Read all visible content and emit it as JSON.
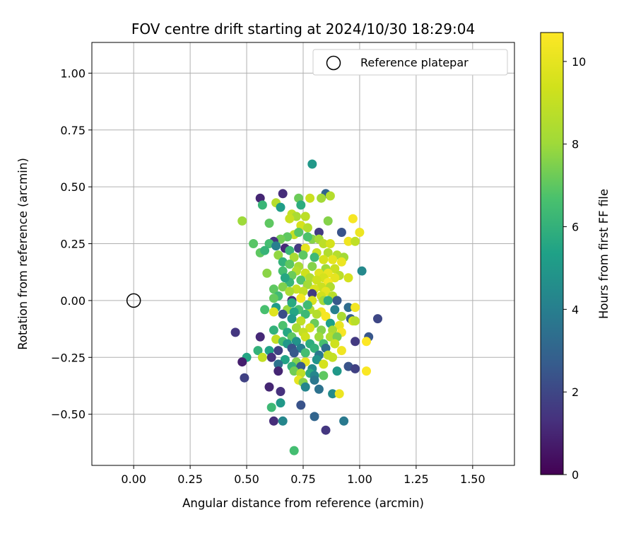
{
  "chart_data": {
    "type": "scatter",
    "title": "FOV centre drift starting at 2024/10/30 18:29:04",
    "xlabel": "Angular distance from reference (arcmin)",
    "ylabel": "Rotation from reference (arcmin)",
    "xlim": [
      -0.185,
      1.685
    ],
    "ylim": [
      -0.725,
      1.135
    ],
    "xticks": [
      0.0,
      0.25,
      0.5,
      0.75,
      1.0,
      1.25,
      1.5
    ],
    "xtick_labels": [
      "0.00",
      "0.25",
      "0.50",
      "0.75",
      "1.00",
      "1.25",
      "1.50"
    ],
    "yticks": [
      -0.5,
      -0.25,
      0.0,
      0.25,
      0.5,
      0.75,
      1.0
    ],
    "ytick_labels": [
      "−0.50",
      "−0.25",
      "0.00",
      "0.25",
      "0.50",
      "0.75",
      "1.00"
    ],
    "grid": true,
    "legend": {
      "placement": "top-right",
      "entries": [
        "Reference platepar"
      ]
    },
    "reference_point": {
      "x": 0.0,
      "y": 0.0,
      "label": "Reference platepar"
    },
    "colorbar": {
      "label": "Hours from first FF file",
      "colormap": "viridis",
      "range": [
        0,
        10.7
      ],
      "ticks": [
        0,
        2,
        4,
        6,
        8,
        10
      ],
      "tick_labels": [
        "0",
        "2",
        "4",
        "6",
        "8",
        "10"
      ]
    },
    "points": [
      [
        0.79,
        0.6,
        5.0
      ],
      [
        0.85,
        0.47,
        3.0
      ],
      [
        0.87,
        0.46,
        8.6
      ],
      [
        0.66,
        0.47,
        1.2
      ],
      [
        0.56,
        0.45,
        1.0
      ],
      [
        0.73,
        0.45,
        7.2
      ],
      [
        0.78,
        0.45,
        9.2
      ],
      [
        0.83,
        0.45,
        8.1
      ],
      [
        0.63,
        0.43,
        8.6
      ],
      [
        0.57,
        0.42,
        6.2
      ],
      [
        0.74,
        0.42,
        5.8
      ],
      [
        0.65,
        0.41,
        5.2
      ],
      [
        0.7,
        0.38,
        9.0
      ],
      [
        0.72,
        0.37,
        8.3
      ],
      [
        0.69,
        0.36,
        9.2
      ],
      [
        0.76,
        0.37,
        8.8
      ],
      [
        0.48,
        0.35,
        8.0
      ],
      [
        0.6,
        0.34,
        7.0
      ],
      [
        0.86,
        0.35,
        7.6
      ],
      [
        0.97,
        0.36,
        10.5
      ],
      [
        0.74,
        0.33,
        9.5
      ],
      [
        0.77,
        0.32,
        8.6
      ],
      [
        0.82,
        0.3,
        1.6
      ],
      [
        0.92,
        0.3,
        2.4
      ],
      [
        1.0,
        0.3,
        10.2
      ],
      [
        0.71,
        0.29,
        9.0
      ],
      [
        0.68,
        0.28,
        7.0
      ],
      [
        0.79,
        0.27,
        7.6
      ],
      [
        0.82,
        0.27,
        8.2
      ],
      [
        0.65,
        0.27,
        7.3
      ],
      [
        0.62,
        0.26,
        1.4
      ],
      [
        0.53,
        0.25,
        6.9
      ],
      [
        0.6,
        0.25,
        6.5
      ],
      [
        0.84,
        0.25,
        8.8
      ],
      [
        0.87,
        0.25,
        9.5
      ],
      [
        0.95,
        0.26,
        10.3
      ],
      [
        0.98,
        0.26,
        8.9
      ],
      [
        0.63,
        0.24,
        4.0
      ],
      [
        0.67,
        0.23,
        1.1
      ],
      [
        0.73,
        0.23,
        1.6
      ],
      [
        0.76,
        0.23,
        10.0
      ],
      [
        0.69,
        0.22,
        6.2
      ],
      [
        0.56,
        0.21,
        7.0
      ],
      [
        0.58,
        0.22,
        6.1
      ],
      [
        0.81,
        0.21,
        9.1
      ],
      [
        0.86,
        0.21,
        8.5
      ],
      [
        0.9,
        0.2,
        8.6
      ],
      [
        0.93,
        0.19,
        8.1
      ],
      [
        0.64,
        0.2,
        7.8
      ],
      [
        0.71,
        0.19,
        8.3
      ],
      [
        0.84,
        0.18,
        9.5
      ],
      [
        0.88,
        0.18,
        10.0
      ],
      [
        0.92,
        0.17,
        10.2
      ],
      [
        0.66,
        0.17,
        6.0
      ],
      [
        0.69,
        0.16,
        7.0
      ],
      [
        0.73,
        0.15,
        8.3
      ],
      [
        0.79,
        0.15,
        7.6
      ],
      [
        0.85,
        0.14,
        8.0
      ],
      [
        0.89,
        0.14,
        9.2
      ],
      [
        0.66,
        0.13,
        6.5
      ],
      [
        0.72,
        0.13,
        8.6
      ],
      [
        0.76,
        0.12,
        9.3
      ],
      [
        0.82,
        0.12,
        9.8
      ],
      [
        0.86,
        0.12,
        10.1
      ],
      [
        0.91,
        0.11,
        8.8
      ],
      [
        1.01,
        0.13,
        4.4
      ],
      [
        0.7,
        0.11,
        7.2
      ],
      [
        0.78,
        0.1,
        8.5
      ],
      [
        0.84,
        0.1,
        9.5
      ],
      [
        0.89,
        0.1,
        10.0
      ],
      [
        0.95,
        0.1,
        9.5
      ],
      [
        0.74,
        0.09,
        6.8
      ],
      [
        0.81,
        0.09,
        9.3
      ],
      [
        0.86,
        0.08,
        10.4
      ],
      [
        0.69,
        0.08,
        6.2
      ],
      [
        0.77,
        0.07,
        8.1
      ],
      [
        0.83,
        0.06,
        9.2
      ],
      [
        0.87,
        0.06,
        8.5
      ],
      [
        0.66,
        0.06,
        7.5
      ],
      [
        0.72,
        0.05,
        9.1
      ],
      [
        0.8,
        0.05,
        9.6
      ],
      [
        0.85,
        0.04,
        10.0
      ],
      [
        0.62,
        0.05,
        7.0
      ],
      [
        0.69,
        0.04,
        8.3
      ],
      [
        0.75,
        0.04,
        9.0
      ],
      [
        0.79,
        0.03,
        1.6
      ],
      [
        0.83,
        0.02,
        9.4
      ],
      [
        0.88,
        0.02,
        8.7
      ],
      [
        0.64,
        0.02,
        6.4
      ],
      [
        0.7,
        0.0,
        1.2
      ],
      [
        0.74,
        0.01,
        10.4
      ],
      [
        0.79,
        0.0,
        9.6
      ],
      [
        0.84,
        0.0,
        8.1
      ],
      [
        0.9,
        0.0,
        2.6
      ],
      [
        0.63,
        -0.03,
        5.2
      ],
      [
        0.68,
        -0.04,
        7.9
      ],
      [
        0.73,
        -0.04,
        6.7
      ],
      [
        0.78,
        -0.04,
        8.6
      ],
      [
        0.83,
        -0.05,
        10.4
      ],
      [
        0.89,
        -0.04,
        4.0
      ],
      [
        0.95,
        -0.03,
        3.3
      ],
      [
        0.98,
        -0.03,
        10.4
      ],
      [
        0.58,
        -0.04,
        6.6
      ],
      [
        0.62,
        -0.05,
        9.8
      ],
      [
        0.66,
        -0.06,
        2.2
      ],
      [
        0.71,
        -0.05,
        5.5
      ],
      [
        0.76,
        -0.06,
        6.3
      ],
      [
        0.81,
        -0.06,
        8.6
      ],
      [
        0.85,
        -0.07,
        10.5
      ],
      [
        0.92,
        -0.07,
        8.3
      ],
      [
        0.96,
        -0.08,
        2.8
      ],
      [
        0.97,
        -0.09,
        9.5
      ],
      [
        0.98,
        -0.09,
        8.7
      ],
      [
        1.08,
        -0.08,
        2.0
      ],
      [
        0.7,
        -0.08,
        5.0
      ],
      [
        0.74,
        -0.09,
        8.9
      ],
      [
        0.8,
        -0.1,
        7.2
      ],
      [
        0.87,
        -0.1,
        5.3
      ],
      [
        0.91,
        -0.11,
        10.1
      ],
      [
        0.66,
        -0.11,
        6.7
      ],
      [
        0.72,
        -0.12,
        8.2
      ],
      [
        0.78,
        -0.12,
        9.6
      ],
      [
        0.83,
        -0.13,
        7.6
      ],
      [
        0.88,
        -0.13,
        8.3
      ],
      [
        0.62,
        -0.13,
        6.0
      ],
      [
        0.68,
        -0.14,
        5.6
      ],
      [
        0.75,
        -0.14,
        9.0
      ],
      [
        0.45,
        -0.14,
        1.5
      ],
      [
        0.92,
        -0.14,
        10.5
      ],
      [
        0.56,
        -0.16,
        1.1
      ],
      [
        0.7,
        -0.16,
        7.0
      ],
      [
        0.76,
        -0.16,
        9.3
      ],
      [
        0.82,
        -0.16,
        8.0
      ],
      [
        0.87,
        -0.16,
        8.6
      ],
      [
        0.9,
        -0.16,
        7.4
      ],
      [
        1.04,
        -0.16,
        2.5
      ],
      [
        0.63,
        -0.17,
        9.0
      ],
      [
        0.66,
        -0.18,
        6.5
      ],
      [
        0.72,
        -0.18,
        4.8
      ],
      [
        0.78,
        -0.19,
        5.8
      ],
      [
        0.84,
        -0.19,
        6.6
      ],
      [
        0.89,
        -0.19,
        9.3
      ],
      [
        0.98,
        -0.18,
        1.6
      ],
      [
        1.03,
        -0.18,
        10.7
      ],
      [
        0.68,
        -0.19,
        5.0
      ],
      [
        0.7,
        -0.21,
        2.4
      ],
      [
        0.74,
        -0.21,
        4.0
      ],
      [
        0.8,
        -0.21,
        6.0
      ],
      [
        0.85,
        -0.21,
        3.3
      ],
      [
        0.92,
        -0.22,
        10.3
      ],
      [
        0.55,
        -0.22,
        6.0
      ],
      [
        0.6,
        -0.22,
        5.4
      ],
      [
        0.64,
        -0.22,
        1.8
      ],
      [
        0.71,
        -0.23,
        2.6
      ],
      [
        0.76,
        -0.23,
        6.5
      ],
      [
        0.82,
        -0.24,
        3.8
      ],
      [
        0.86,
        -0.24,
        9.0
      ],
      [
        0.5,
        -0.25,
        5.5
      ],
      [
        0.57,
        -0.25,
        9.0
      ],
      [
        0.61,
        -0.25,
        1.3
      ],
      [
        0.67,
        -0.26,
        5.4
      ],
      [
        0.72,
        -0.27,
        7.6
      ],
      [
        0.76,
        -0.27,
        10.0
      ],
      [
        0.81,
        -0.26,
        4.8
      ],
      [
        0.88,
        -0.25,
        9.0
      ],
      [
        0.48,
        -0.27,
        0.8
      ],
      [
        0.64,
        -0.28,
        3.5
      ],
      [
        0.7,
        -0.29,
        6.0
      ],
      [
        0.74,
        -0.29,
        2.6
      ],
      [
        0.79,
        -0.3,
        4.5
      ],
      [
        0.84,
        -0.28,
        9.5
      ],
      [
        0.9,
        -0.31,
        5.0
      ],
      [
        0.95,
        -0.29,
        2.4
      ],
      [
        0.98,
        -0.3,
        1.8
      ],
      [
        1.03,
        -0.31,
        10.6
      ],
      [
        0.64,
        -0.31,
        1.0
      ],
      [
        0.71,
        -0.31,
        7.3
      ],
      [
        0.74,
        -0.32,
        8.8
      ],
      [
        0.78,
        -0.32,
        5.7
      ],
      [
        0.8,
        -0.33,
        4.3
      ],
      [
        0.84,
        -0.33,
        7.0
      ],
      [
        0.49,
        -0.34,
        1.8
      ],
      [
        0.73,
        -0.35,
        10.0
      ],
      [
        0.8,
        -0.35,
        3.7
      ],
      [
        0.75,
        -0.36,
        7.6
      ],
      [
        0.76,
        -0.38,
        4.3
      ],
      [
        0.6,
        -0.38,
        1.0
      ],
      [
        0.82,
        -0.39,
        3.5
      ],
      [
        0.65,
        -0.4,
        1.3
      ],
      [
        0.88,
        -0.41,
        4.5
      ],
      [
        0.91,
        -0.41,
        10.2
      ],
      [
        0.61,
        -0.47,
        6.3
      ],
      [
        0.65,
        -0.45,
        5.0
      ],
      [
        0.74,
        -0.46,
        2.4
      ],
      [
        0.8,
        -0.51,
        3.0
      ],
      [
        0.62,
        -0.53,
        1.2
      ],
      [
        0.66,
        -0.53,
        4.3
      ],
      [
        0.93,
        -0.53,
        3.8
      ],
      [
        0.85,
        -0.57,
        1.5
      ],
      [
        0.71,
        -0.66,
        6.5
      ],
      [
        0.77,
        0.28,
        6.7
      ],
      [
        0.75,
        0.2,
        7.0
      ],
      [
        0.8,
        0.19,
        6.3
      ],
      [
        0.67,
        0.1,
        5.6
      ],
      [
        0.62,
        0.01,
        7.1
      ],
      [
        0.77,
        -0.02,
        6.4
      ],
      [
        0.86,
        0.0,
        5.9
      ],
      [
        0.59,
        0.12,
        7.7
      ],
      [
        0.73,
        0.3,
        6.9
      ],
      [
        0.7,
        -0.01,
        5.7
      ]
    ]
  }
}
